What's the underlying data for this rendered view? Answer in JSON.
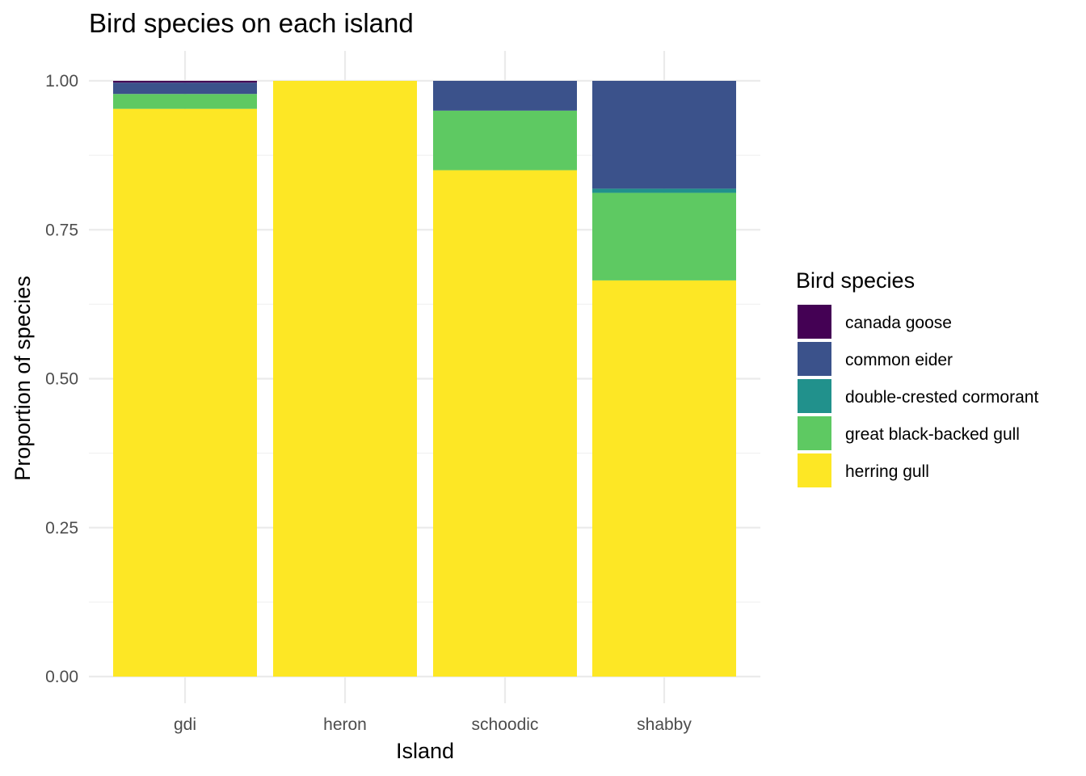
{
  "chart_data": {
    "type": "bar",
    "stacked": true,
    "title": "Bird species on each island",
    "xlabel": "Island",
    "ylabel": "Proportion of species",
    "ylim": [
      0,
      1
    ],
    "yticks": [
      "0.00",
      "0.25",
      "0.50",
      "0.75",
      "1.00"
    ],
    "categories": [
      "gdi",
      "heron",
      "schoodic",
      "shabby"
    ],
    "grid": true,
    "legend": {
      "title": "Bird species",
      "position": "right"
    },
    "series": [
      {
        "name": "herring gull",
        "color": "#FDE725",
        "values": [
          0.953,
          1.0,
          0.85,
          0.665
        ]
      },
      {
        "name": "great black-backed gull",
        "color": "#5EC962",
        "values": [
          0.025,
          0.0,
          0.1,
          0.147
        ]
      },
      {
        "name": "double-crested cormorant",
        "color": "#21918C",
        "values": [
          0.0,
          0.0,
          0.0,
          0.007
        ]
      },
      {
        "name": "common eider",
        "color": "#3B528B",
        "values": [
          0.019,
          0.0,
          0.05,
          0.181
        ]
      },
      {
        "name": "canada goose",
        "color": "#440154",
        "values": [
          0.003,
          0.0,
          0.0,
          0.0
        ]
      }
    ],
    "legend_order": [
      "canada goose",
      "common eider",
      "double-crested cormorant",
      "great black-backed gull",
      "herring gull"
    ]
  }
}
